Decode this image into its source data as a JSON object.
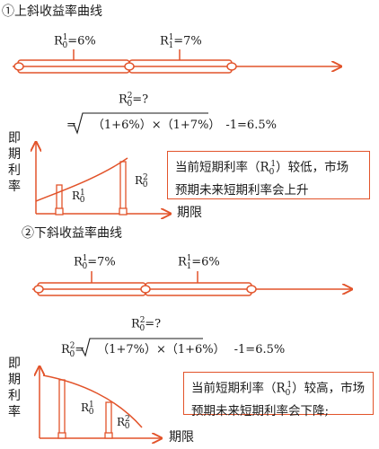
{
  "section1": {
    "title": "①上斜收益率曲线",
    "rate_r0": "=6%",
    "rate_r1": "=7%",
    "formula_lhs": "=?",
    "formula_rhs": "=√(1+6%) × (1+7%) -1=6.5%",
    "formula_sqrt_body": "（1+6%）×（1+7%）",
    "formula_tail": "-1=6.5%",
    "y_axis_label": "即期利率",
    "x_axis_label": "期限",
    "note": [
      "当前短期利率（R",
      "）较低，市场",
      "预期未来短期利率会上升"
    ]
  },
  "section2": {
    "title": "②下斜收益率曲线",
    "rate_r0": "=7%",
    "rate_r1": "=6%",
    "formula_lhs": "=?",
    "formula_sqrt_body": "（1+7%）×（1+6%）",
    "formula_tail": "-1=6.5%",
    "y_axis_label": "即期利率",
    "x_axis_label": "期限",
    "note": [
      "当前短期利率（R",
      "）较高，市场",
      "预期未来短期利率会下降;"
    ]
  },
  "colors": {
    "accent": "#e2532a",
    "text": "#1a1a1a"
  }
}
